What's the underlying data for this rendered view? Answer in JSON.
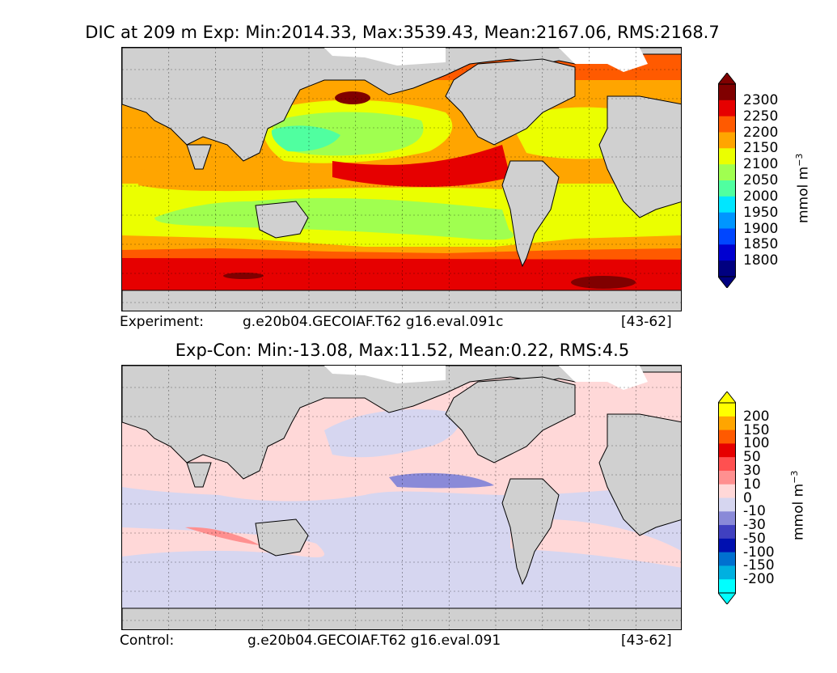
{
  "panel_top": {
    "title": "DIC at 209 m Exp: Min:2014.33, Max:3539.43, Mean:2167.06, RMS:2168.7",
    "footer_label": "Experiment:",
    "footer_case": "g.e20b04.GECOIAF.T62 g16.eval.091c",
    "footer_years": "[43-62]",
    "colorbar": {
      "unit": "mmol m",
      "unit_exp": "−3",
      "levels": [
        "2300",
        "2250",
        "2200",
        "2150",
        "2100",
        "2050",
        "2000",
        "1950",
        "1900",
        "1850",
        "1800"
      ],
      "colors": [
        "#800000",
        "#e60000",
        "#ff5a00",
        "#ffa500",
        "#ebff00",
        "#a0ff50",
        "#50ffa0",
        "#00e6ff",
        "#0096ff",
        "#0046ff",
        "#0000d0",
        "#000080"
      ],
      "over_color": "#000000",
      "under_color": "#000000"
    }
  },
  "panel_bottom": {
    "title": "Exp-Con: Min:-13.08, Max:11.52, Mean:0.22, RMS:4.5",
    "footer_label": "Control:",
    "footer_case": "g.e20b04.GECOIAF.T62 g16.eval.091",
    "footer_years": "[43-62]",
    "colorbar": {
      "unit": "mmol m",
      "unit_exp": "−3",
      "levels": [
        "200",
        "150",
        "100",
        "50",
        "30",
        "10",
        "0",
        "-10",
        "-30",
        "-50",
        "-100",
        "-150",
        "-200"
      ],
      "colors": [
        "#ffff00",
        "#ffa500",
        "#ff5a00",
        "#e60000",
        "#ff5050",
        "#ff9090",
        "#ffd8d8",
        "#d6d6f0",
        "#8a8ad8",
        "#4040c0",
        "#0010b0",
        "#0070d0",
        "#00b0e0",
        "#00ffff"
      ]
    }
  },
  "map_colors": {
    "land": "#d0d0d0",
    "sea_ice": "#ffffff",
    "contour_line": "#000000"
  }
}
